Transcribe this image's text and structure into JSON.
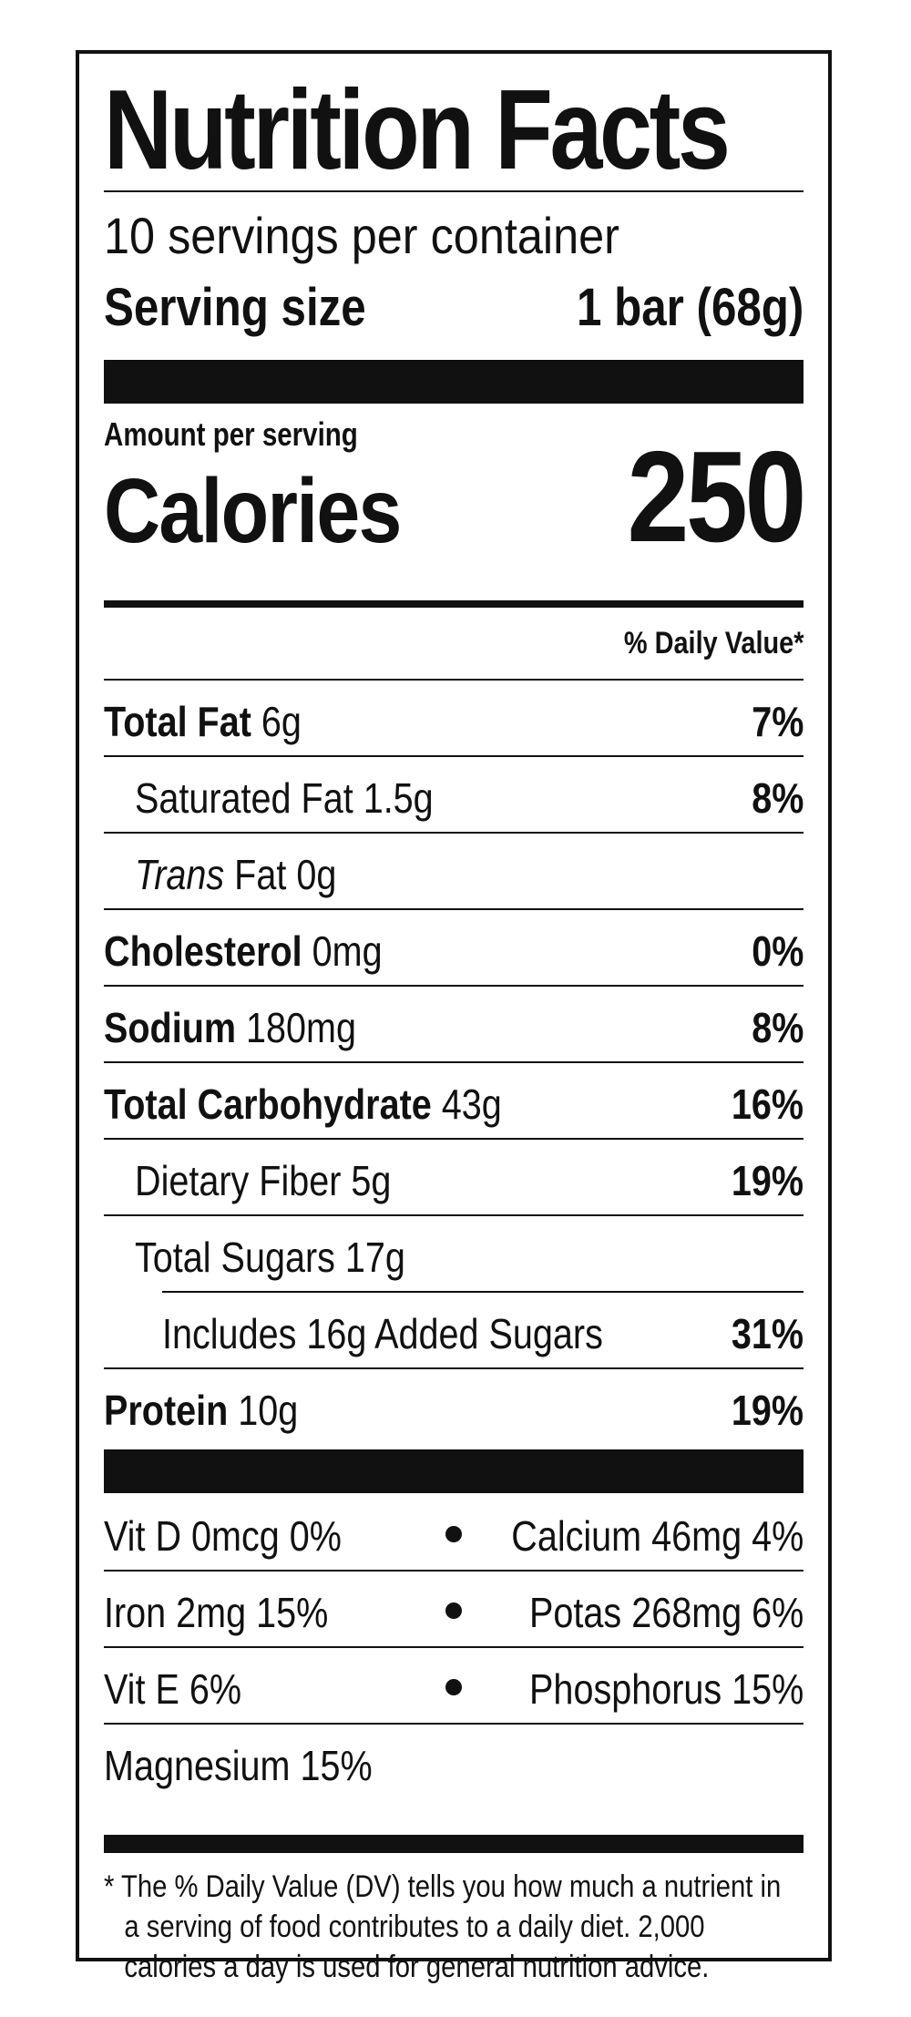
{
  "label": {
    "title": "Nutrition Facts",
    "servings_per_container": "10 servings per container",
    "serving_size_label": "Serving size",
    "serving_size_value": "1 bar (68g)",
    "amount_per_serving": "Amount per serving",
    "calories_label": "Calories",
    "calories_value": "250",
    "daily_value_header": "% Daily Value*"
  },
  "nutrients": [
    {
      "name": "Total Fat",
      "amount": "6g",
      "dv": "7%"
    },
    {
      "name": "Saturated Fat",
      "amount": "1.5g",
      "dv": "8%"
    },
    {
      "name": "Trans",
      "name_suffix": "Fat",
      "amount": "0g",
      "dv": ""
    },
    {
      "name": "Cholesterol",
      "amount": "0mg",
      "dv": "0%"
    },
    {
      "name": "Sodium",
      "amount": "180mg",
      "dv": "8%"
    },
    {
      "name": "Total Carbohydrate",
      "amount": "43g",
      "dv": "16%"
    },
    {
      "name": "Dietary Fiber",
      "amount": "5g",
      "dv": "19%"
    },
    {
      "name": "Total Sugars",
      "amount": "17g",
      "dv": ""
    },
    {
      "name": "Includes 16g Added Sugars",
      "amount": "",
      "dv": "31%"
    },
    {
      "name": "Protein",
      "amount": "10g",
      "dv": "19%"
    }
  ],
  "vitamins": [
    {
      "left": "Vit D 0mcg 0%",
      "right": "Calcium 46mg 4%"
    },
    {
      "left": "Iron 2mg 15%",
      "right": "Potas 268mg 6%"
    },
    {
      "left": "Vit E 6%",
      "right": "Phosphorus 15%"
    },
    {
      "left": "Magnesium 15%",
      "right": ""
    }
  ],
  "footnote": {
    "line1": "* The % Daily Value (DV) tells you how much a nutrient in",
    "line2": "a serving of food contributes to a daily diet. 2,000",
    "line3": "calories a day is used for general nutrition advice."
  }
}
